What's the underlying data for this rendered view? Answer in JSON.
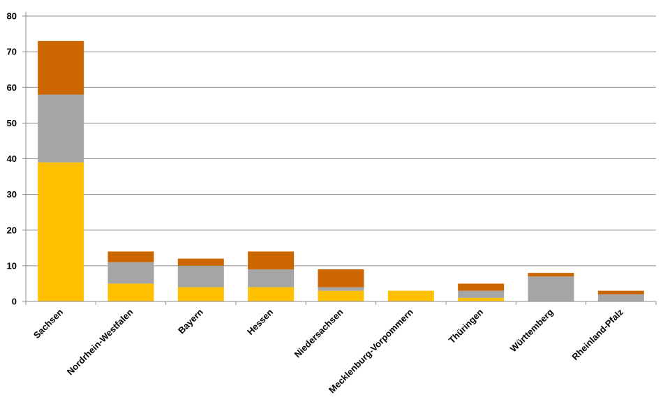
{
  "chart_data": {
    "type": "bar",
    "stacked": true,
    "categories": [
      "Sachsen",
      "Nordrhein-Westfalen",
      "Bayern",
      "Hessen",
      "Niedersachsen",
      "Mecklenburg-Vorpommern",
      "Thüringen",
      "Württemberg",
      "Rheinland-Pfalz"
    ],
    "series": [
      {
        "color": "#FFC000",
        "values": [
          39,
          5,
          4,
          4,
          3,
          3,
          1,
          0,
          0
        ]
      },
      {
        "color": "#A5A5A5",
        "values": [
          19,
          6,
          6,
          5,
          1,
          0,
          2,
          7,
          2
        ]
      },
      {
        "color": "#CC6600",
        "values": [
          15,
          3,
          2,
          5,
          5,
          0,
          2,
          1,
          1
        ]
      }
    ],
    "ylim": [
      0,
      80
    ],
    "yticks": [
      0,
      10,
      20,
      30,
      40,
      50,
      60,
      70,
      80
    ],
    "grid": true,
    "legend": "none"
  }
}
